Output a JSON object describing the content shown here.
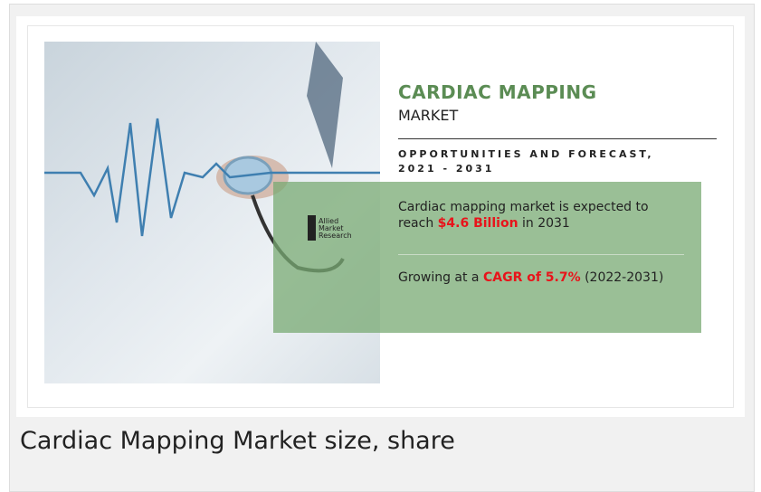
{
  "header": {
    "title": "CARDIAC MAPPING",
    "subtitle": "MARKET",
    "forecast": "OPPORTUNITIES AND FORECAST, 2021 - 2031"
  },
  "logo": [
    "Allied",
    "Market",
    "Research"
  ],
  "stats": [
    {
      "before": "Cardiac mapping market is expected to reach",
      "highlight": "$4.6 Billion",
      "after": "in 2031"
    },
    {
      "before": "Growing at a",
      "highlight": "CAGR of 5.7%",
      "after": "(2022-2031)"
    }
  ],
  "caption": "Cardiac Mapping Market size, share"
}
